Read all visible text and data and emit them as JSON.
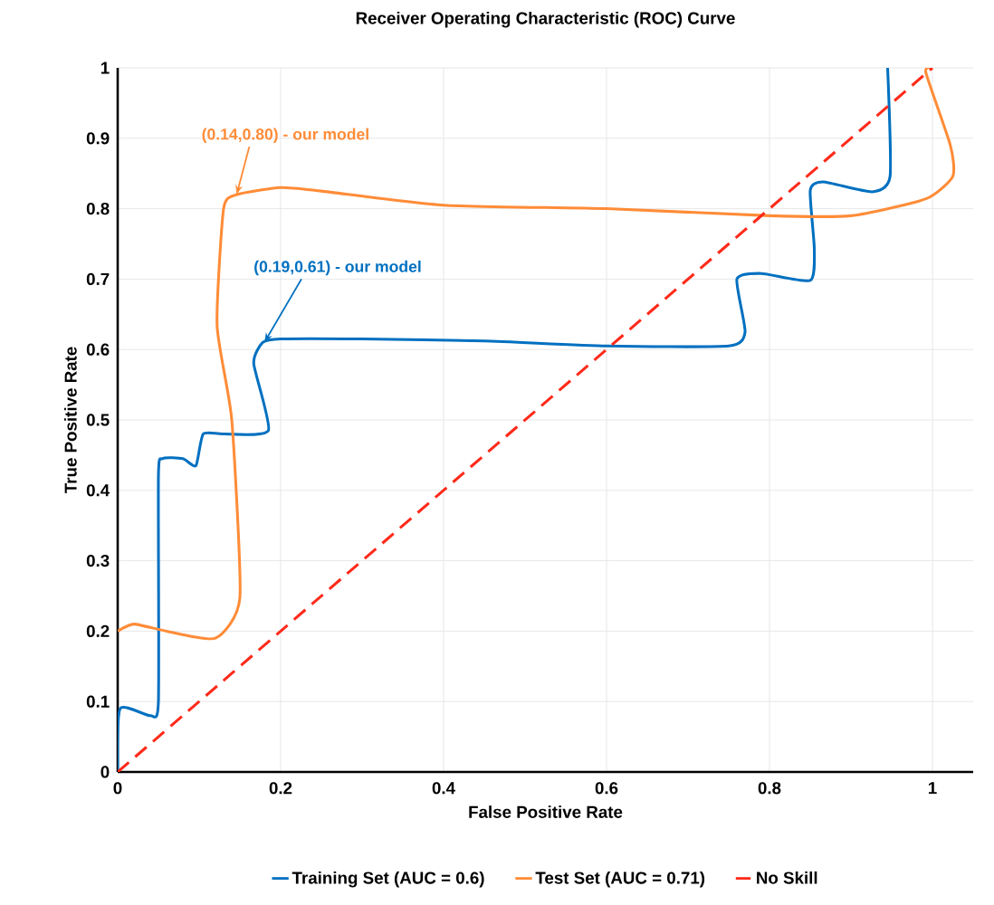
{
  "chart_data": {
    "type": "line",
    "title": "Receiver Operating Characteristic (ROC) Curve",
    "xlabel": "False Positive Rate",
    "ylabel": "True Positive Rate",
    "xlim": [
      0,
      1.05
    ],
    "ylim": [
      0,
      1
    ],
    "xticks": [
      0,
      0.2,
      0.4,
      0.6,
      0.8,
      1
    ],
    "yticks": [
      0,
      0.1,
      0.2,
      0.3,
      0.4,
      0.5,
      0.6,
      0.7,
      0.8,
      0.9,
      1
    ],
    "grid": true,
    "legend": "bottom",
    "series": [
      {
        "name": "Training Set (AUC = 0.6)",
        "color": "#0070c0",
        "x": [
          0,
          0.003,
          0.04,
          0.05,
          0.05,
          0.055,
          0.08,
          0.096,
          0.105,
          0.13,
          0.185,
          0.167,
          0.178,
          0.2,
          0.3,
          0.45,
          0.6,
          0.75,
          0.77,
          0.76,
          0.79,
          0.85,
          0.855,
          0.85,
          0.866,
          0.926,
          0.948,
          0.945
        ],
        "values": [
          0,
          0.09,
          0.08,
          0.1,
          0.42,
          0.445,
          0.445,
          0.435,
          0.48,
          0.48,
          0.485,
          0.58,
          0.61,
          0.615,
          0.615,
          0.612,
          0.605,
          0.605,
          0.625,
          0.7,
          0.708,
          0.698,
          0.743,
          0.826,
          0.838,
          0.824,
          0.846,
          1
        ]
      },
      {
        "name": "Test Set (AUC = 0.71)",
        "color": "#ff8c38",
        "x": [
          0,
          0.02,
          0.06,
          0.12,
          0.15,
          0.14,
          0.122,
          0.13,
          0.146,
          0.2,
          0.25,
          0.4,
          0.6,
          0.8,
          0.9,
          0.992,
          1.025,
          1.022,
          0.992,
          1.0
        ],
        "values": [
          0.2,
          0.21,
          0.2,
          0.19,
          0.248,
          0.5,
          0.634,
          0.8,
          0.82,
          0.83,
          0.825,
          0.805,
          0.8,
          0.79,
          0.79,
          0.814,
          0.846,
          0.89,
          0.993,
          1.0
        ]
      },
      {
        "name": "No Skill",
        "color": "#ff2a1a",
        "line_style": "dashed",
        "x": [
          0,
          1
        ],
        "values": [
          0,
          1
        ]
      }
    ],
    "annotations": [
      {
        "text": "(0.19,0.61) - our model",
        "x": 0.18,
        "y": 0.61
      },
      {
        "text": "(0.14,0.80) - our model",
        "x": 0.146,
        "y": 0.82
      }
    ]
  }
}
